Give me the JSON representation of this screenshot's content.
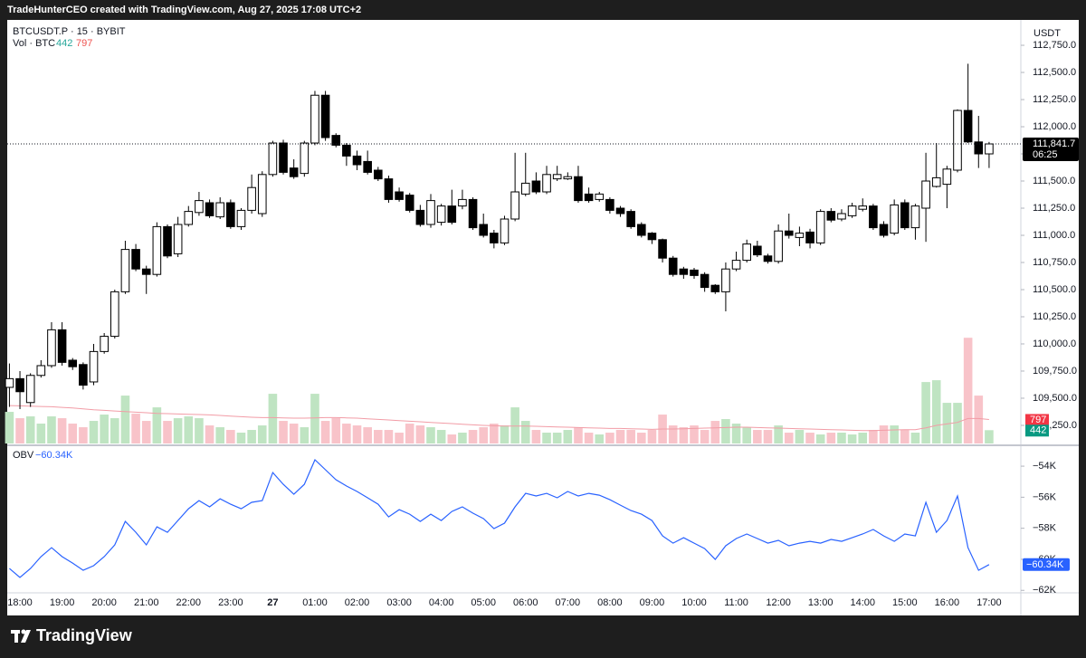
{
  "header": "TradeHunterCEO created with TradingView.com, Aug 27, 2025 17:08 UTC+2",
  "footer": "TradingView",
  "chart_data": [
    {
      "type": "candlestick",
      "title": "BTCUSDT.P · 15 · BYBIT",
      "y_unit": "USDT",
      "categories": [
        null,
        "18:00",
        null,
        null,
        null,
        "19:00",
        null,
        null,
        null,
        "20:00",
        null,
        null,
        null,
        "21:00",
        null,
        null,
        null,
        "22:00",
        null,
        null,
        null,
        "23:00",
        null,
        null,
        null,
        "27",
        null,
        null,
        null,
        "01:00",
        null,
        null,
        null,
        "02:00",
        null,
        null,
        null,
        "03:00",
        null,
        null,
        null,
        "04:00",
        null,
        null,
        null,
        "05:00",
        null,
        null,
        null,
        "06:00",
        null,
        null,
        null,
        "07:00",
        null,
        null,
        null,
        "08:00",
        null,
        null,
        null,
        "09:00",
        null,
        null,
        null,
        "10:00",
        null,
        null,
        null,
        "11:00",
        null,
        null,
        null,
        "12:00",
        null,
        null,
        null,
        "13:00",
        null,
        null,
        null,
        "14:00",
        null,
        null,
        null,
        "15:00",
        null,
        null,
        null,
        "16:00",
        null,
        null,
        null,
        "17:00"
      ],
      "open": [
        109600,
        109680,
        109460,
        109710,
        109800,
        110130,
        109850,
        109810,
        109650,
        109930,
        110070,
        110480,
        110870,
        110690,
        110640,
        111080,
        110830,
        111100,
        111210,
        111300,
        111170,
        111300,
        111080,
        111230,
        111200,
        111560,
        111850,
        111620,
        111570,
        111850,
        112290,
        111920,
        111830,
        111730,
        111680,
        111600,
        111520,
        111400,
        111370,
        111230,
        111100,
        111120,
        111270,
        111270,
        111330,
        111100,
        111020,
        110930,
        111150,
        111380,
        111500,
        111400,
        111520,
        111520,
        111540,
        111380,
        111330,
        111330,
        111250,
        111220,
        111100,
        111020,
        110960,
        110790,
        110690,
        110680,
        110640,
        110540,
        110480,
        110690,
        110770,
        110900,
        110810,
        110760,
        111040,
        110980,
        111030,
        110930,
        111220,
        111150,
        111180,
        111240,
        111270,
        111100,
        111020,
        111300,
        111070,
        111250,
        111450,
        111470,
        111600,
        112150,
        111860,
        111750
      ],
      "high": [
        109820,
        109750,
        109730,
        109850,
        110200,
        110200,
        109870,
        109830,
        110000,
        110100,
        110500,
        110950,
        110920,
        110720,
        111120,
        111100,
        111170,
        111270,
        111400,
        111330,
        111350,
        111330,
        111250,
        111560,
        111590,
        111870,
        111880,
        111700,
        111870,
        112330,
        112330,
        111940,
        111850,
        111780,
        111780,
        111630,
        111550,
        111440,
        111390,
        111280,
        111380,
        111290,
        111420,
        111420,
        111350,
        111200,
        111050,
        111180,
        111760,
        111760,
        111580,
        111640,
        111640,
        111580,
        111640,
        111440,
        111400,
        111350,
        111270,
        111240,
        111120,
        111030,
        110970,
        110810,
        110710,
        110700,
        110660,
        110550,
        110750,
        110850,
        110960,
        110950,
        110830,
        111100,
        111200,
        111080,
        111060,
        111240,
        111250,
        111240,
        111300,
        111340,
        111290,
        111130,
        111330,
        111330,
        111290,
        111760,
        111850,
        111640,
        112160,
        112580,
        112100,
        111860
      ],
      "low": [
        109420,
        109400,
        109420,
        109690,
        109780,
        109800,
        109760,
        109580,
        109620,
        109910,
        110050,
        110460,
        110670,
        110460,
        110620,
        110790,
        110800,
        111080,
        111180,
        111160,
        111150,
        111060,
        111050,
        111200,
        111170,
        111540,
        111560,
        111520,
        111540,
        111830,
        111870,
        111810,
        111640,
        111600,
        111560,
        111500,
        111300,
        111310,
        111210,
        111080,
        111070,
        111090,
        111100,
        111240,
        111050,
        110980,
        110880,
        110910,
        111130,
        111360,
        111380,
        111380,
        111500,
        111510,
        111300,
        111300,
        111310,
        111200,
        111170,
        111060,
        110980,
        110920,
        110750,
        110620,
        110600,
        110600,
        110480,
        110460,
        110300,
        110670,
        110750,
        110800,
        110740,
        110740,
        110970,
        110900,
        110880,
        110910,
        111120,
        111130,
        111160,
        111220,
        111050,
        110980,
        111000,
        111050,
        110960,
        110940,
        111440,
        111250,
        111580,
        111850,
        111620,
        111620
      ],
      "close": [
        109680,
        109560,
        109710,
        109800,
        110130,
        109830,
        109790,
        109620,
        109930,
        110070,
        110480,
        110870,
        110690,
        110640,
        111080,
        110810,
        111100,
        111220,
        111320,
        111180,
        111300,
        111080,
        111230,
        111440,
        111560,
        111850,
        111580,
        111540,
        111850,
        112290,
        111900,
        111830,
        111730,
        111650,
        111580,
        111520,
        111330,
        111330,
        111230,
        111100,
        111320,
        111270,
        111120,
        111330,
        111070,
        111000,
        110930,
        111150,
        111400,
        111480,
        111400,
        111560,
        111560,
        111540,
        111320,
        111320,
        111380,
        111230,
        111200,
        111080,
        111000,
        110960,
        110790,
        110640,
        110640,
        110630,
        110520,
        110480,
        110690,
        110770,
        110920,
        110820,
        110760,
        111040,
        111000,
        111020,
        110930,
        111220,
        111140,
        111200,
        111270,
        111270,
        111070,
        111000,
        111280,
        111070,
        111270,
        111500,
        111530,
        111610,
        112150,
        111860,
        111750,
        111841.7
      ],
      "up_color": "#ffffff",
      "down_color": "#000000",
      "ylim": [
        109083,
        112967
      ],
      "yticks": [
        {
          "value": 109250,
          "label": "109,250.0"
        },
        {
          "value": 109500,
          "label": "109,500.0"
        },
        {
          "value": 109750,
          "label": "109,750.0"
        },
        {
          "value": 110000,
          "label": "110,000.0"
        },
        {
          "value": 110250,
          "label": "110,250.0"
        },
        {
          "value": 110500,
          "label": "110,500.0"
        },
        {
          "value": 110750,
          "label": "110,750.0"
        },
        {
          "value": 111000,
          "label": "111,000.0"
        },
        {
          "value": 111250,
          "label": "111,250.0"
        },
        {
          "value": 111500,
          "label": "111,500.0"
        },
        {
          "value": 111750,
          "label": "111,750.0"
        },
        {
          "value": 112000,
          "label": "112,000.0"
        },
        {
          "value": 112250,
          "label": "112,250.0"
        },
        {
          "value": 112500,
          "label": "112,500.0"
        },
        {
          "value": 112750,
          "label": "112,750.0"
        }
      ],
      "last_price": {
        "value": 111841.7,
        "label": "111,841.7"
      },
      "countdown": "06:25",
      "volume": {
        "title": "Vol · BTC",
        "values": [
          1050,
          840,
          900,
          660,
          900,
          840,
          660,
          540,
          750,
          960,
          840,
          1590,
          990,
          750,
          1200,
          750,
          840,
          900,
          840,
          600,
          540,
          450,
          360,
          450,
          600,
          1650,
          750,
          660,
          540,
          1650,
          750,
          840,
          660,
          600,
          540,
          450,
          450,
          360,
          660,
          600,
          540,
          450,
          300,
          360,
          450,
          540,
          660,
          600,
          1200,
          750,
          450,
          360,
          360,
          450,
          540,
          360,
          300,
          360,
          450,
          450,
          360,
          450,
          960,
          600,
          540,
          600,
          450,
          750,
          810,
          660,
          540,
          450,
          450,
          600,
          360,
          450,
          360,
          300,
          360,
          360,
          300,
          360,
          450,
          600,
          600,
          450,
          360,
          2040,
          2100,
          1350,
          1350,
          3510,
          1590,
          442
        ],
        "up_color": "#bfe4c2",
        "down_color": "#f8c3c9",
        "vlim": [
          0,
          14000
        ],
        "ma": {
          "values": [
            1260,
            1250,
            1240,
            1230,
            1220,
            1200,
            1180,
            1150,
            1120,
            1100,
            1080,
            1060,
            1040,
            1020,
            1000,
            990,
            980,
            970,
            960,
            950,
            930,
            910,
            890,
            870,
            860,
            860,
            850,
            840,
            840,
            850,
            860,
            860,
            850,
            840,
            820,
            800,
            780,
            760,
            740,
            720,
            700,
            680,
            660,
            640,
            620,
            600,
            590,
            580,
            580,
            580,
            570,
            560,
            550,
            540,
            530,
            520,
            510,
            500,
            500,
            490,
            480,
            470,
            480,
            480,
            490,
            500,
            510,
            520,
            530,
            540,
            540,
            530,
            520,
            510,
            500,
            490,
            480,
            470,
            460,
            450,
            440,
            430,
            430,
            440,
            450,
            460,
            460,
            520,
            600,
            650,
            700,
            830,
            830,
            797
          ],
          "color": "#f29ca6"
        }
      }
    },
    {
      "type": "line",
      "title": "OBV",
      "values": [
        -60.59,
        -61.17,
        -60.59,
        -59.83,
        -59.25,
        -59.83,
        -60.24,
        -60.71,
        -60.41,
        -59.83,
        -59.07,
        -57.56,
        -58.26,
        -59.07,
        -57.91,
        -58.26,
        -57.5,
        -56.74,
        -56.22,
        -56.62,
        -56.1,
        -56.45,
        -56.74,
        -56.33,
        -56.22,
        -54.41,
        -55.17,
        -55.81,
        -55.17,
        -53.59,
        -54.23,
        -54.87,
        -55.28,
        -55.63,
        -56.04,
        -56.45,
        -57.27,
        -56.8,
        -57.09,
        -57.56,
        -57.09,
        -57.5,
        -56.92,
        -56.62,
        -57.03,
        -57.38,
        -58.02,
        -57.67,
        -56.62,
        -55.75,
        -55.92,
        -55.75,
        -56.04,
        -55.63,
        -55.92,
        -55.75,
        -55.87,
        -56.16,
        -56.51,
        -56.86,
        -57.09,
        -57.5,
        -58.49,
        -58.96,
        -58.61,
        -58.96,
        -59.31,
        -60.01,
        -59.13,
        -58.66,
        -58.37,
        -58.66,
        -58.96,
        -58.78,
        -59.13,
        -58.96,
        -58.84,
        -58.96,
        -58.72,
        -58.84,
        -58.61,
        -58.37,
        -58.08,
        -58.49,
        -58.84,
        -58.37,
        -58.49,
        -56.33,
        -58.26,
        -57.5,
        -55.92,
        -59.25,
        -60.71,
        -60.34
      ],
      "value_label": "−60.34K",
      "color": "#2962ff",
      "ylim": [
        -62.16,
        -52.83
      ],
      "yticks": [
        {
          "value": -54,
          "label": "−54K"
        },
        {
          "value": -56,
          "label": "−56K"
        },
        {
          "value": -58,
          "label": "−58K"
        },
        {
          "value": -60,
          "label": "−60K"
        },
        {
          "value": -62,
          "label": "−62K"
        }
      ]
    }
  ]
}
